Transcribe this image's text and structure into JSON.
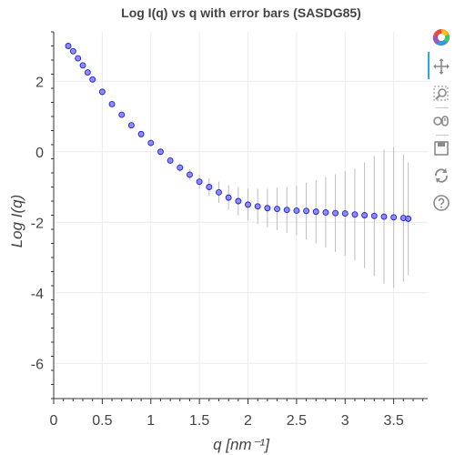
{
  "chart_data": {
    "type": "scatter",
    "title": "Log I(q) vs q with error bars (SASDG85)",
    "xlabel": "q [nm⁻¹]",
    "ylabel": "Log I(q)",
    "xlim": [
      0,
      3.85
    ],
    "ylim": [
      -7.0,
      3.4
    ],
    "x_ticks": [
      0,
      0.5,
      1,
      1.5,
      2,
      2.5,
      3,
      3.5
    ],
    "x_tick_labels": [
      "0",
      "0.5",
      "1",
      "1.5",
      "2",
      "2.5",
      "3",
      "3.5"
    ],
    "y_ticks": [
      -6,
      -4,
      -2,
      0,
      2
    ],
    "y_tick_labels": [
      "-6",
      "-4",
      "-2",
      "0",
      "2"
    ],
    "grid": true,
    "marker": "circle",
    "marker_fill": "#7b7bf5",
    "marker_line": "#1f1fd6",
    "errorbar_color": "#bdbdbd",
    "series": [
      {
        "x": [
          0.15,
          0.2,
          0.25,
          0.3,
          0.35,
          0.4,
          0.5,
          0.6,
          0.7,
          0.8,
          0.9,
          1.0,
          1.1,
          1.2,
          1.3,
          1.4,
          1.5,
          1.6,
          1.7,
          1.8,
          1.9,
          2.0,
          2.1,
          2.2,
          2.3,
          2.4,
          2.5,
          2.6,
          2.7,
          2.8,
          2.9,
          3.0,
          3.1,
          3.2,
          3.3,
          3.4,
          3.5,
          3.6,
          3.65
        ],
        "y": [
          3.0,
          2.85,
          2.65,
          2.45,
          2.25,
          2.05,
          1.7,
          1.35,
          1.05,
          0.75,
          0.5,
          0.25,
          0.0,
          -0.25,
          -0.45,
          -0.65,
          -0.85,
          -1.0,
          -1.15,
          -1.3,
          -1.4,
          -1.5,
          -1.55,
          -1.6,
          -1.62,
          -1.65,
          -1.67,
          -1.68,
          -1.7,
          -1.72,
          -1.74,
          -1.75,
          -1.78,
          -1.8,
          -1.82,
          -1.84,
          -1.86,
          -1.88,
          -1.9
        ],
        "err": [
          0.02,
          0.02,
          0.02,
          0.02,
          0.02,
          0.03,
          0.03,
          0.03,
          0.04,
          0.05,
          0.05,
          0.06,
          0.08,
          0.1,
          0.12,
          0.15,
          0.2,
          0.25,
          0.3,
          0.35,
          0.4,
          0.45,
          0.5,
          0.55,
          0.6,
          0.65,
          0.7,
          0.8,
          0.9,
          1.0,
          1.1,
          1.2,
          1.3,
          1.5,
          1.7,
          1.9,
          2.0,
          1.8,
          1.6
        ]
      }
    ]
  },
  "toolbar": {
    "items": [
      {
        "name": "bokeh-logo-icon",
        "interactable": false
      },
      {
        "name": "pan-tool-icon",
        "interactable": true,
        "active": true
      },
      {
        "name": "box-zoom-tool-icon",
        "interactable": true
      },
      {
        "name": "wheel-zoom-tool-icon",
        "interactable": true
      },
      {
        "name": "save-tool-icon",
        "interactable": true
      },
      {
        "name": "reset-tool-icon",
        "interactable": true
      },
      {
        "name": "help-tool-icon",
        "interactable": true
      }
    ]
  }
}
